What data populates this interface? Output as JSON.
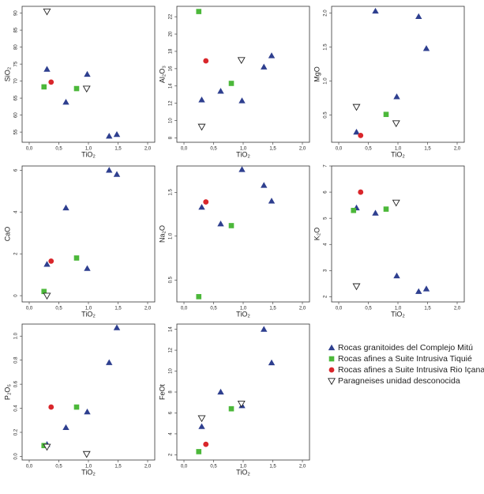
{
  "chart_data": [
    {
      "type": "scatter",
      "xlabel": "TiO₂",
      "ylabel": "SiO₂",
      "xlim": [
        -0.12,
        2.12
      ],
      "ylim": [
        52,
        92
      ],
      "xticks": [
        {
          "value": 0,
          "label": "0,0"
        },
        {
          "value": 0.5,
          "label": "0,5"
        },
        {
          "value": 1,
          "label": "1,0"
        },
        {
          "value": 1.5,
          "label": "1,5"
        },
        {
          "value": 2,
          "label": "2,0"
        }
      ],
      "yticks": [
        55,
        60,
        65,
        70,
        75,
        80,
        85,
        90
      ],
      "series": [
        {
          "name": "Rocas granitoides del Complejo Mitú",
          "color": "#2e3f8f",
          "marker": "triangle",
          "x": [
            0.3,
            0.62,
            0.98,
            1.35,
            1.48
          ],
          "values": [
            73.5,
            63.8,
            72,
            53.8,
            54.3
          ]
        },
        {
          "name": "Rocas afines a Suite Intrusiva Tiquié",
          "color": "#4cb83a",
          "marker": "square",
          "x": [
            0.25,
            0.8
          ],
          "values": [
            68.3,
            67.8
          ]
        },
        {
          "name": "Rocas afines a Suite Intrusiva Rio Içana",
          "color": "#d9262b",
          "marker": "circle",
          "x": [
            0.37
          ],
          "values": [
            69.7
          ]
        },
        {
          "name": "Paragneises unidad desconocida",
          "color": "#ffffff",
          "marker": "open-triangle-down",
          "x": [
            0.3,
            0.97
          ],
          "values": [
            90.5,
            67.8
          ]
        }
      ]
    },
    {
      "type": "scatter",
      "xlabel": "TiO₂",
      "ylabel": "Al₂O₃",
      "xlim": [
        -0.12,
        2.12
      ],
      "ylim": [
        7.5,
        23.2
      ],
      "xticks": [
        {
          "value": 0,
          "label": "0,0"
        },
        {
          "value": 0.5,
          "label": "0,5"
        },
        {
          "value": 1,
          "label": "1,0"
        },
        {
          "value": 1.5,
          "label": "1,5"
        },
        {
          "value": 2,
          "label": "2,0"
        }
      ],
      "yticks": [
        8,
        10,
        12,
        14,
        16,
        18,
        20,
        22
      ],
      "series": [
        {
          "name": "Rocas granitoides del Complejo Mitú",
          "color": "#2e3f8f",
          "marker": "triangle",
          "x": [
            0.3,
            0.62,
            0.98,
            1.35,
            1.48
          ],
          "values": [
            12.4,
            13.4,
            12.3,
            16.2,
            17.5
          ]
        },
        {
          "name": "Rocas afines a Suite Intrusiva Tiquié",
          "color": "#4cb83a",
          "marker": "square",
          "x": [
            0.25,
            0.8
          ],
          "values": [
            22.6,
            14.3
          ]
        },
        {
          "name": "Rocas afines a Suite Intrusiva Rio Içana",
          "color": "#d9262b",
          "marker": "circle",
          "x": [
            0.37
          ],
          "values": [
            16.9
          ]
        },
        {
          "name": "Paragneises unidad desconocida",
          "color": "#ffffff",
          "marker": "open-triangle-down",
          "x": [
            0.3,
            0.97
          ],
          "values": [
            9.3,
            17
          ]
        }
      ]
    },
    {
      "type": "scatter",
      "xlabel": "TiO₂",
      "ylabel": "MgO",
      "xlim": [
        -0.12,
        2.12
      ],
      "ylim": [
        0.1,
        2.1
      ],
      "xticks": [
        {
          "value": 0,
          "label": "0,0"
        },
        {
          "value": 0.5,
          "label": "0,5"
        },
        {
          "value": 1,
          "label": "1,0"
        },
        {
          "value": 1.5,
          "label": "1,5"
        },
        {
          "value": 2,
          "label": "2,0"
        }
      ],
      "yticks": [
        {
          "value": 0.5,
          "label": "0.5"
        },
        {
          "value": 1,
          "label": "1.0"
        },
        {
          "value": 1.5,
          "label": "1.5"
        },
        {
          "value": 2,
          "label": "2.0"
        }
      ],
      "series": [
        {
          "name": "Rocas granitoides del Complejo Mitú",
          "color": "#2e3f8f",
          "marker": "triangle",
          "x": [
            0.3,
            0.62,
            0.98,
            1.35,
            1.48
          ],
          "values": [
            0.25,
            2.03,
            0.77,
            1.95,
            1.48
          ]
        },
        {
          "name": "Rocas afines a Suite Intrusiva Tiquié",
          "color": "#4cb83a",
          "marker": "square",
          "x": [
            0.8
          ],
          "values": [
            0.51
          ]
        },
        {
          "name": "Rocas afines a Suite Intrusiva Rio Içana",
          "color": "#d9262b",
          "marker": "circle",
          "x": [
            0.37
          ],
          "values": [
            0.2
          ]
        },
        {
          "name": "Paragneises unidad desconocida",
          "color": "#ffffff",
          "marker": "open-triangle-down",
          "x": [
            0.3,
            0.97
          ],
          "values": [
            0.62,
            0.38
          ]
        }
      ]
    },
    {
      "type": "scatter",
      "xlabel": "TiO₂",
      "ylabel": "CaO",
      "xlim": [
        -0.12,
        2.12
      ],
      "ylim": [
        -0.3,
        6.2
      ],
      "xticks": [
        {
          "value": 0,
          "label": "0,0"
        },
        {
          "value": 0.5,
          "label": "0,5"
        },
        {
          "value": 1,
          "label": "1,0"
        },
        {
          "value": 1.5,
          "label": "1,5"
        },
        {
          "value": 2,
          "label": "2,0"
        }
      ],
      "yticks": [
        0,
        2,
        4,
        6
      ],
      "series": [
        {
          "name": "Rocas granitoides del Complejo Mitú",
          "color": "#2e3f8f",
          "marker": "triangle",
          "x": [
            0.3,
            0.62,
            0.98,
            1.35,
            1.48
          ],
          "values": [
            1.5,
            4.2,
            1.3,
            6,
            5.8
          ]
        },
        {
          "name": "Rocas afines a Suite Intrusiva Tiquié",
          "color": "#4cb83a",
          "marker": "square",
          "x": [
            0.25,
            0.8
          ],
          "values": [
            0.2,
            1.8
          ]
        },
        {
          "name": "Rocas afines a Suite Intrusiva Rio Içana",
          "color": "#d9262b",
          "marker": "circle",
          "x": [
            0.37
          ],
          "values": [
            1.65
          ]
        },
        {
          "name": "Paragneises unidad desconocida",
          "color": "#ffffff",
          "marker": "open-triangle-down",
          "x": [
            0.3
          ],
          "values": [
            0
          ]
        }
      ]
    },
    {
      "type": "scatter",
      "xlabel": "TiO₂",
      "ylabel": "Na₂O",
      "xlim": [
        -0.12,
        2.12
      ],
      "ylim": [
        0.25,
        1.8
      ],
      "xticks": [
        {
          "value": 0,
          "label": "0,0"
        },
        {
          "value": 0.5,
          "label": "0,5"
        },
        {
          "value": 1,
          "label": "1,0"
        },
        {
          "value": 1.5,
          "label": "1,5"
        },
        {
          "value": 2,
          "label": "2,0"
        }
      ],
      "yticks": [
        {
          "value": 0.5,
          "label": "0.5"
        },
        {
          "value": 1,
          "label": "1.0"
        },
        {
          "value": 1.5,
          "label": "1.5"
        }
      ],
      "series": [
        {
          "name": "Rocas granitoides del Complejo Mitú",
          "color": "#2e3f8f",
          "marker": "triangle",
          "x": [
            0.3,
            0.62,
            0.98,
            1.35,
            1.48
          ],
          "values": [
            1.33,
            1.14,
            1.76,
            1.58,
            1.4
          ]
        },
        {
          "name": "Rocas afines a Suite Intrusiva Tiquié",
          "color": "#4cb83a",
          "marker": "square",
          "x": [
            0.25,
            0.8
          ],
          "values": [
            0.31,
            1.12
          ]
        },
        {
          "name": "Rocas afines a Suite Intrusiva Rio Içana",
          "color": "#d9262b",
          "marker": "circle",
          "x": [
            0.37
          ],
          "values": [
            1.39
          ]
        }
      ]
    },
    {
      "type": "scatter",
      "xlabel": "TiO₂",
      "ylabel": "K₂O",
      "xlim": [
        -0.12,
        2.12
      ],
      "ylim": [
        1.8,
        7
      ],
      "xticks": [
        {
          "value": 0,
          "label": "0,0"
        },
        {
          "value": 0.5,
          "label": "0,5"
        },
        {
          "value": 1,
          "label": "1,0"
        },
        {
          "value": 1.5,
          "label": "1,5"
        },
        {
          "value": 2,
          "label": "2,0"
        }
      ],
      "yticks": [
        2,
        3,
        4,
        5,
        6,
        7
      ],
      "series": [
        {
          "name": "Rocas granitoides del Complejo Mitú",
          "color": "#2e3f8f",
          "marker": "triangle",
          "x": [
            0.3,
            0.62,
            0.98,
            1.35,
            1.48
          ],
          "values": [
            5.4,
            5.2,
            2.8,
            2.2,
            2.3
          ]
        },
        {
          "name": "Rocas afines a Suite Intrusiva Tiquié",
          "color": "#4cb83a",
          "marker": "square",
          "x": [
            0.25,
            0.8
          ],
          "values": [
            5.3,
            5.35
          ]
        },
        {
          "name": "Rocas afines a Suite Intrusiva Rio Içana",
          "color": "#d9262b",
          "marker": "circle",
          "x": [
            0.37
          ],
          "values": [
            6
          ]
        },
        {
          "name": "Paragneises unidad desconocida",
          "color": "#ffffff",
          "marker": "open-triangle-down",
          "x": [
            0.3,
            0.97
          ],
          "values": [
            2.4,
            5.6
          ]
        }
      ]
    },
    {
      "type": "scatter",
      "xlabel": "TiO₂",
      "ylabel": "P₂O₅",
      "xlim": [
        -0.12,
        2.12
      ],
      "ylim": [
        -0.03,
        1.1
      ],
      "xticks": [
        {
          "value": 0,
          "label": "0,0"
        },
        {
          "value": 0.5,
          "label": "0,5"
        },
        {
          "value": 1,
          "label": "1,0"
        },
        {
          "value": 1.5,
          "label": "1,5"
        },
        {
          "value": 2,
          "label": "2,0"
        }
      ],
      "yticks": [
        {
          "value": 0,
          "label": "0.0"
        },
        {
          "value": 0.2,
          "label": "0.2"
        },
        {
          "value": 0.4,
          "label": "0.4"
        },
        {
          "value": 0.6,
          "label": "0.6"
        },
        {
          "value": 0.8,
          "label": "0.8"
        },
        {
          "value": 1,
          "label": "1.0"
        }
      ],
      "series": [
        {
          "name": "Rocas granitoides del Complejo Mitú",
          "color": "#2e3f8f",
          "marker": "triangle",
          "x": [
            0.3,
            0.62,
            0.98,
            1.35,
            1.48
          ],
          "values": [
            0.1,
            0.24,
            0.37,
            0.78,
            1.07
          ]
        },
        {
          "name": "Rocas afines a Suite Intrusiva Tiquié",
          "color": "#4cb83a",
          "marker": "square",
          "x": [
            0.25,
            0.8
          ],
          "values": [
            0.09,
            0.41
          ]
        },
        {
          "name": "Rocas afines a Suite Intrusiva Rio Içana",
          "color": "#d9262b",
          "marker": "circle",
          "x": [
            0.37
          ],
          "values": [
            0.41
          ]
        },
        {
          "name": "Paragneises unidad desconocida",
          "color": "#ffffff",
          "marker": "open-triangle-down",
          "x": [
            0.3,
            0.97
          ],
          "values": [
            0.08,
            0.02
          ]
        }
      ]
    },
    {
      "type": "scatter",
      "xlabel": "TiO₂",
      "ylabel": "FeOt",
      "xlim": [
        -0.12,
        2.12
      ],
      "ylim": [
        1.5,
        14.5
      ],
      "xticks": [
        {
          "value": 0,
          "label": "0,0"
        },
        {
          "value": 0.5,
          "label": "0,5"
        },
        {
          "value": 1,
          "label": "1,0"
        },
        {
          "value": 1.5,
          "label": "1,5"
        },
        {
          "value": 2,
          "label": "2,0"
        }
      ],
      "yticks": [
        2,
        4,
        6,
        8,
        10,
        12,
        14
      ],
      "series": [
        {
          "name": "Rocas granitoides del Complejo Mitú",
          "color": "#2e3f8f",
          "marker": "triangle",
          "x": [
            0.3,
            0.62,
            0.98,
            1.35,
            1.48
          ],
          "values": [
            4.7,
            8,
            6.7,
            14,
            10.8
          ]
        },
        {
          "name": "Rocas afines a Suite Intrusiva Tiquié",
          "color": "#4cb83a",
          "marker": "square",
          "x": [
            0.25,
            0.8
          ],
          "values": [
            2.3,
            6.4
          ]
        },
        {
          "name": "Rocas afines a Suite Intrusiva Rio Içana",
          "color": "#d9262b",
          "marker": "circle",
          "x": [
            0.37
          ],
          "values": [
            3
          ]
        },
        {
          "name": "Paragneises unidad desconocida",
          "color": "#ffffff",
          "marker": "open-triangle-down",
          "x": [
            0.3,
            0.97
          ],
          "values": [
            5.5,
            6.9
          ]
        }
      ]
    }
  ]
}
